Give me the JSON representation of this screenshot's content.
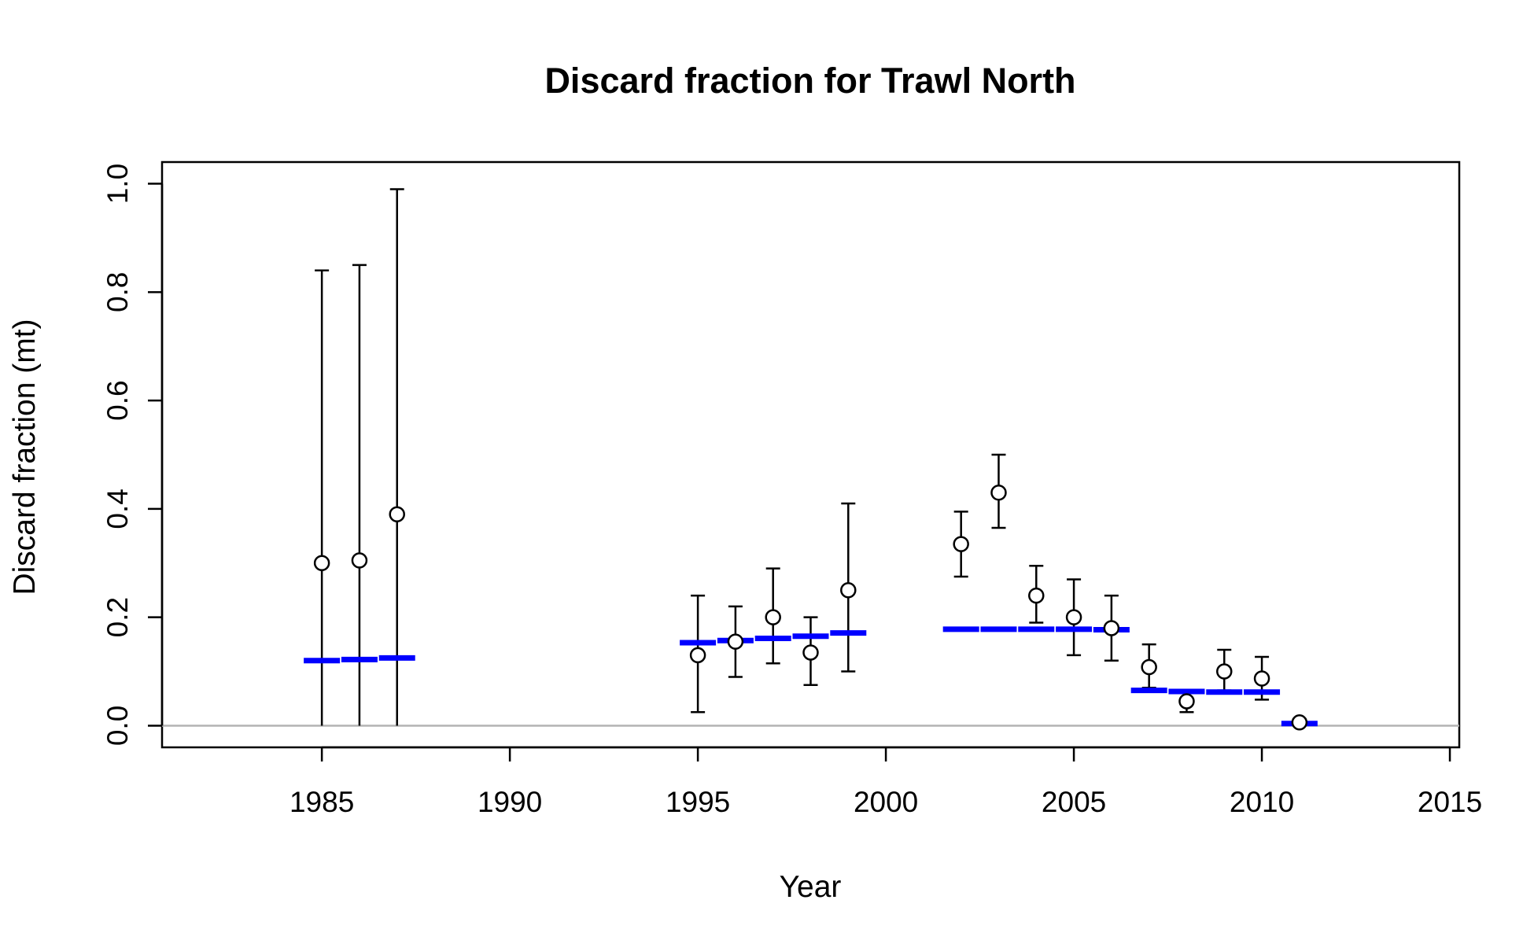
{
  "chart_data": {
    "type": "scatter",
    "title": "Discard fraction for Trawl North",
    "xlabel": "Year",
    "ylabel": "Discard fraction (mt)",
    "xlim": [
      1980.75,
      2015.25
    ],
    "ylim": [
      -0.04,
      1.04
    ],
    "x_ticks": [
      1985,
      1990,
      1995,
      2000,
      2005,
      2010,
      2015
    ],
    "y_ticks": [
      0.0,
      0.2,
      0.4,
      0.6,
      0.8,
      1.0
    ],
    "x_tick_labels": [
      "1985",
      "1990",
      "1995",
      "2000",
      "2005",
      "2010",
      "2015"
    ],
    "y_tick_labels": [
      "0.0",
      "0.2",
      "0.4",
      "0.6",
      "0.8",
      "1.0"
    ],
    "reference_line_y": 0.0,
    "grid": false,
    "colors": {
      "observed": "#000000",
      "expected": "#0000ff",
      "reference": "#b3b3b3"
    },
    "observed": [
      {
        "year": 1985,
        "value": 0.3,
        "lower": 0.0,
        "upper": 0.84
      },
      {
        "year": 1986,
        "value": 0.305,
        "lower": 0.0,
        "upper": 0.85
      },
      {
        "year": 1987,
        "value": 0.39,
        "lower": 0.0,
        "upper": 0.99
      },
      {
        "year": 1995,
        "value": 0.13,
        "lower": 0.025,
        "upper": 0.24
      },
      {
        "year": 1996,
        "value": 0.155,
        "lower": 0.09,
        "upper": 0.22
      },
      {
        "year": 1997,
        "value": 0.2,
        "lower": 0.115,
        "upper": 0.29
      },
      {
        "year": 1998,
        "value": 0.135,
        "lower": 0.075,
        "upper": 0.2
      },
      {
        "year": 1999,
        "value": 0.25,
        "lower": 0.1,
        "upper": 0.41
      },
      {
        "year": 2002,
        "value": 0.335,
        "lower": 0.275,
        "upper": 0.395
      },
      {
        "year": 2003,
        "value": 0.43,
        "lower": 0.365,
        "upper": 0.5
      },
      {
        "year": 2004,
        "value": 0.24,
        "lower": 0.19,
        "upper": 0.295
      },
      {
        "year": 2005,
        "value": 0.2,
        "lower": 0.13,
        "upper": 0.27
      },
      {
        "year": 2006,
        "value": 0.18,
        "lower": 0.12,
        "upper": 0.24
      },
      {
        "year": 2007,
        "value": 0.108,
        "lower": 0.07,
        "upper": 0.15
      },
      {
        "year": 2008,
        "value": 0.045,
        "lower": 0.025,
        "upper": 0.065
      },
      {
        "year": 2009,
        "value": 0.1,
        "lower": 0.065,
        "upper": 0.14
      },
      {
        "year": 2010,
        "value": 0.087,
        "lower": 0.048,
        "upper": 0.127
      },
      {
        "year": 2011,
        "value": 0.006,
        "lower": 0.0,
        "upper": 0.012
      }
    ],
    "expected": [
      {
        "year": 1985,
        "value": 0.12
      },
      {
        "year": 1986,
        "value": 0.122
      },
      {
        "year": 1987,
        "value": 0.125
      },
      {
        "year": 1995,
        "value": 0.153
      },
      {
        "year": 1996,
        "value": 0.157
      },
      {
        "year": 1997,
        "value": 0.161
      },
      {
        "year": 1998,
        "value": 0.165
      },
      {
        "year": 1999,
        "value": 0.171
      },
      {
        "year": 2002,
        "value": 0.178
      },
      {
        "year": 2003,
        "value": 0.178
      },
      {
        "year": 2004,
        "value": 0.178
      },
      {
        "year": 2005,
        "value": 0.178
      },
      {
        "year": 2006,
        "value": 0.177
      },
      {
        "year": 2007,
        "value": 0.065
      },
      {
        "year": 2008,
        "value": 0.063
      },
      {
        "year": 2009,
        "value": 0.062
      },
      {
        "year": 2010,
        "value": 0.062
      },
      {
        "year": 2011,
        "value": 0.004
      }
    ]
  }
}
